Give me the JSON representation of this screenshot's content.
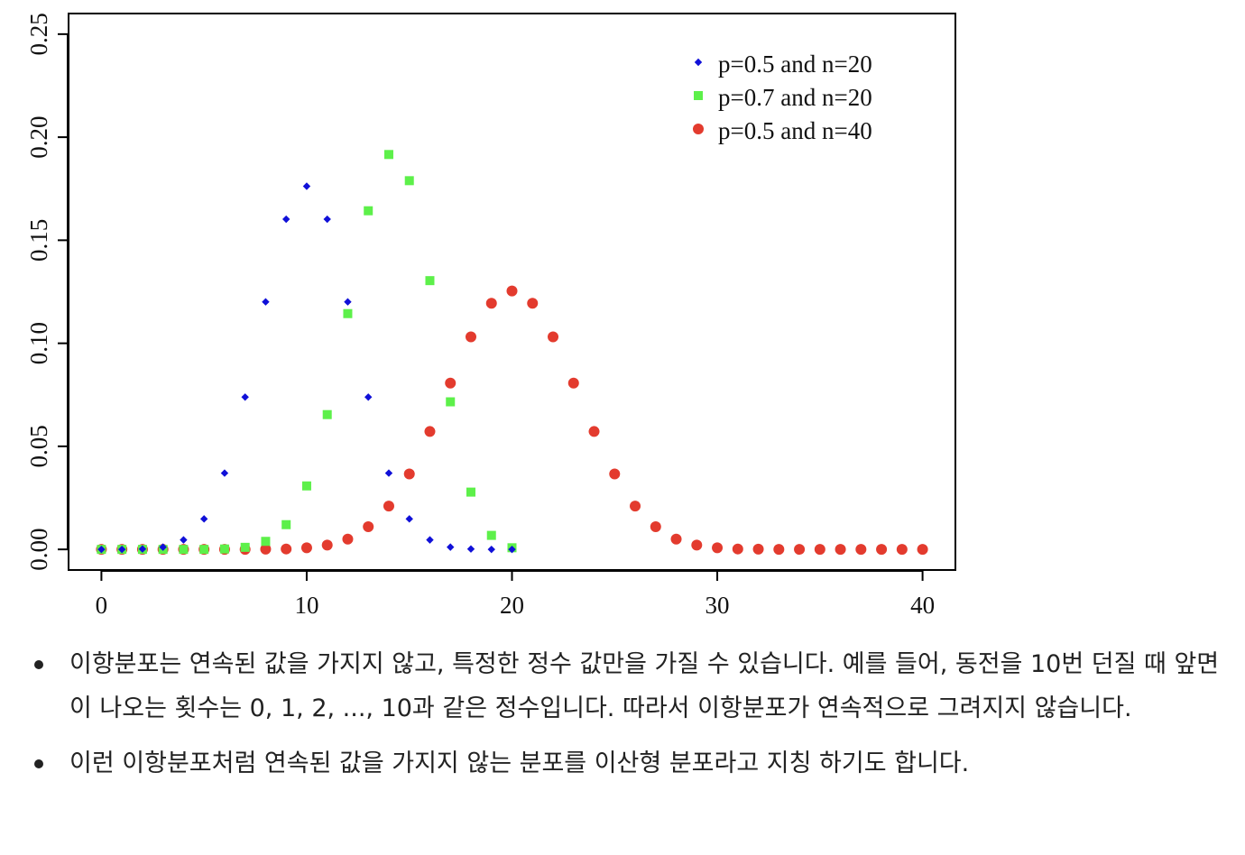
{
  "chart_data": {
    "type": "scatter",
    "title": "",
    "xlabel": "",
    "ylabel": "",
    "xlim": [
      -1.6,
      41.6
    ],
    "ylim": [
      -0.01,
      0.26
    ],
    "grid": false,
    "legend_position": "top-right",
    "x_ticks": [
      0,
      10,
      20,
      30,
      40
    ],
    "x_tick_labels": [
      "0",
      "10",
      "20",
      "30",
      "40"
    ],
    "y_ticks": [
      0.0,
      0.05,
      0.1,
      0.15,
      0.2,
      0.25
    ],
    "y_tick_labels": [
      "0.00",
      "0.05",
      "0.10",
      "0.15",
      "0.20",
      "0.25"
    ],
    "series": [
      {
        "name": "p=0.5 and n=20",
        "marker": "diamond",
        "color": "#1010d8",
        "x": [
          0,
          1,
          2,
          3,
          4,
          5,
          6,
          7,
          8,
          9,
          10,
          11,
          12,
          13,
          14,
          15,
          16,
          17,
          18,
          19,
          20
        ],
        "y": [
          0.0,
          0.0,
          0.0002,
          0.0011,
          0.0046,
          0.0148,
          0.037,
          0.0739,
          0.1201,
          0.1602,
          0.1762,
          0.1602,
          0.1201,
          0.0739,
          0.037,
          0.0148,
          0.0046,
          0.0011,
          0.0002,
          0.0,
          0.0
        ]
      },
      {
        "name": "p=0.7 and n=20",
        "marker": "square",
        "color": "#5df04a",
        "x": [
          0,
          1,
          2,
          3,
          4,
          5,
          6,
          7,
          8,
          9,
          10,
          11,
          12,
          13,
          14,
          15,
          16,
          17,
          18,
          19,
          20
        ],
        "y": [
          0.0,
          0.0,
          0.0,
          0.0,
          0.0,
          0.0,
          0.0002,
          0.001,
          0.0039,
          0.012,
          0.0308,
          0.0654,
          0.1144,
          0.1643,
          0.1916,
          0.1789,
          0.1304,
          0.0716,
          0.0278,
          0.0068,
          0.0008
        ]
      },
      {
        "name": "p=0.5 and n=40",
        "marker": "circle",
        "color": "#e33b2e",
        "x": [
          0,
          1,
          2,
          3,
          4,
          5,
          6,
          7,
          8,
          9,
          10,
          11,
          12,
          13,
          14,
          15,
          16,
          17,
          18,
          19,
          20,
          21,
          22,
          23,
          24,
          25,
          26,
          27,
          28,
          29,
          30,
          31,
          32,
          33,
          34,
          35,
          36,
          37,
          38,
          39,
          40
        ],
        "y": [
          0.0,
          0.0,
          0.0,
          0.0,
          0.0,
          0.0,
          0.0,
          0.0,
          0.0001,
          0.0002,
          0.0008,
          0.0021,
          0.005,
          0.011,
          0.021,
          0.0366,
          0.0572,
          0.0807,
          0.1031,
          0.1194,
          0.1254,
          0.1194,
          0.1031,
          0.0807,
          0.0572,
          0.0366,
          0.021,
          0.011,
          0.005,
          0.0021,
          0.0008,
          0.0002,
          0.0001,
          0.0,
          0.0,
          0.0,
          0.0,
          0.0,
          0.0,
          0.0,
          0.0
        ]
      }
    ]
  },
  "notes": [
    "이항분포는 연속된 값을 가지지 않고, 특정한 정수 값만을 가질 수 있습니다. 예를 들어, 동전을 10번 던질 때 앞면이 나오는 횟수는 0, 1, 2, ..., 10과 같은 정수입니다. 따라서 이항분포가 연속적으로 그려지지 않습니다.",
    "이런 이항분포처럼 연속된 값을 가지지 않는 분포를 이산형 분포라고 지칭 하기도 합니다."
  ]
}
